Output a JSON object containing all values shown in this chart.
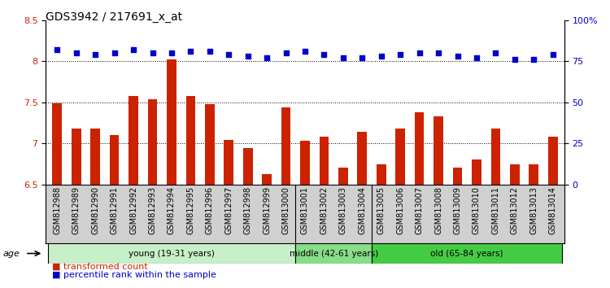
{
  "title": "GDS3942 / 217691_x_at",
  "samples": [
    "GSM812988",
    "GSM812989",
    "GSM812990",
    "GSM812991",
    "GSM812992",
    "GSM812993",
    "GSM812994",
    "GSM812995",
    "GSM812996",
    "GSM812997",
    "GSM812998",
    "GSM812999",
    "GSM813000",
    "GSM813001",
    "GSM813002",
    "GSM813003",
    "GSM813004",
    "GSM813005",
    "GSM813006",
    "GSM813007",
    "GSM813008",
    "GSM813009",
    "GSM813010",
    "GSM813011",
    "GSM813012",
    "GSM813013",
    "GSM813014"
  ],
  "bar_values": [
    7.49,
    7.18,
    7.18,
    7.1,
    7.58,
    7.54,
    8.02,
    7.58,
    7.48,
    7.04,
    6.94,
    6.62,
    7.44,
    7.03,
    7.08,
    6.7,
    7.14,
    6.74,
    7.18,
    7.38,
    7.33,
    6.7,
    6.8,
    7.18,
    6.74,
    6.74,
    7.08
  ],
  "percentile_values": [
    82,
    80,
    79,
    80,
    82,
    80,
    80,
    81,
    81,
    79,
    78,
    77,
    80,
    81,
    79,
    77,
    77,
    78,
    79,
    80,
    80,
    78,
    77,
    80,
    76,
    76,
    79
  ],
  "bar_color": "#cc2200",
  "percentile_color": "#0000cc",
  "ylim_left": [
    6.5,
    8.5
  ],
  "ylim_right": [
    0,
    100
  ],
  "yticks_left": [
    6.5,
    7.0,
    7.5,
    8.0,
    8.5
  ],
  "ytick_labels_left": [
    "6.5",
    "7",
    "7.5",
    "8",
    "8.5"
  ],
  "yticks_right": [
    0,
    25,
    50,
    75,
    100
  ],
  "ytick_labels_right": [
    "0",
    "25",
    "50",
    "75",
    "100%"
  ],
  "hlines": [
    7.0,
    7.5,
    8.0
  ],
  "groups": [
    {
      "label": "young (19-31 years)",
      "start": 0,
      "end": 13,
      "color": "#c8f0c8"
    },
    {
      "label": "middle (42-61 years)",
      "start": 13,
      "end": 17,
      "color": "#88dd88"
    },
    {
      "label": "old (65-84 years)",
      "start": 17,
      "end": 27,
      "color": "#44cc44"
    }
  ],
  "group_boundaries": [
    13,
    17
  ],
  "age_label": "age",
  "legend_bar_label": "transformed count",
  "legend_dot_label": "percentile rank within the sample",
  "title_fontsize": 10,
  "tick_fontsize": 7,
  "label_fontsize": 7,
  "bar_width": 0.5,
  "xtick_bg": "#d0d0d0",
  "background_color": "#ffffff"
}
